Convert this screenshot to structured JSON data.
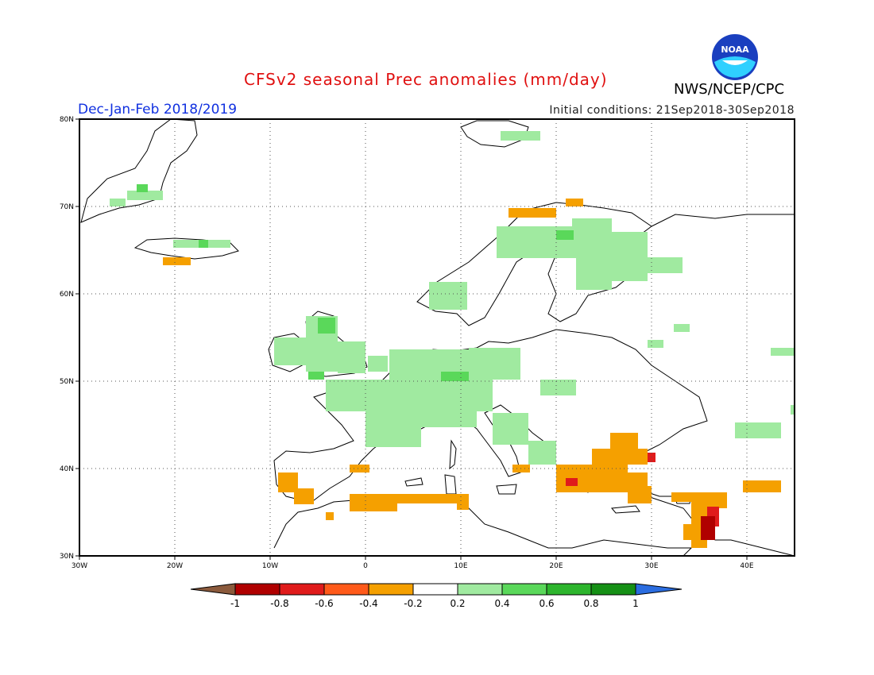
{
  "title": "CFSv2 seasonal Prec anomalies (mm/day)",
  "season": "Dec-Jan-Feb 2018/2019",
  "initial_conditions": "Initial conditions: 21Sep2018-30Sep2018",
  "org": "NWS/NCEP/CPC",
  "logo_text": "NOAA",
  "map": {
    "lon_labels": [
      "30W",
      "20W",
      "10W",
      "0",
      "10E",
      "20E",
      "30E",
      "40E"
    ],
    "lat_labels": [
      "30N",
      "40N",
      "50N",
      "60N",
      "70N",
      "80N"
    ]
  },
  "colorbar": {
    "labels": [
      "-1",
      "-0.8",
      "-0.6",
      "-0.4",
      "-0.2",
      "0.2",
      "0.4",
      "0.6",
      "0.8",
      "1"
    ],
    "colors": [
      "#8b5a3c",
      "#b00000",
      "#e01b1b",
      "#ff5a1a",
      "#f5a000",
      "#ffffff",
      "#a0eaa0",
      "#5ad85a",
      "#2db52d",
      "#159015",
      "#2b6de0"
    ]
  },
  "colors": {
    "dry_moderate": "#f5a000",
    "dry_strong": "#e01b1b",
    "dry_extreme": "#b00000",
    "wet_light": "#a0eaa0",
    "wet_moderate": "#5ad85a"
  }
}
